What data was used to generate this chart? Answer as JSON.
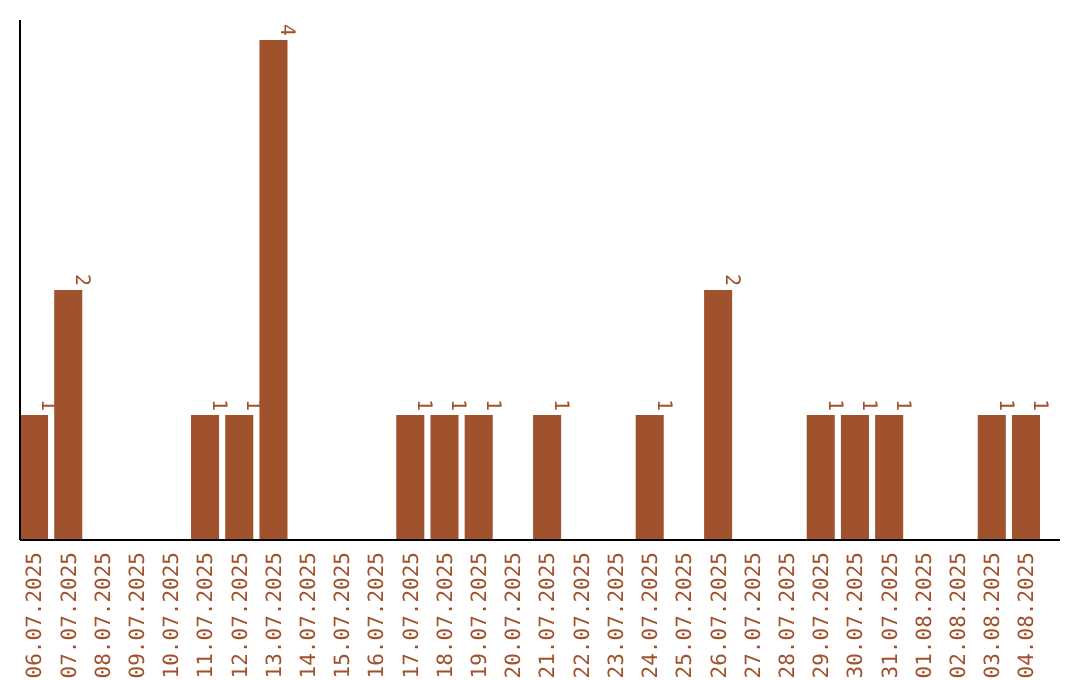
{
  "chart_data": {
    "type": "bar",
    "categories": [
      "06.07.2025",
      "07.07.2025",
      "08.07.2025",
      "09.07.2025",
      "10.07.2025",
      "11.07.2025",
      "12.07.2025",
      "13.07.2025",
      "14.07.2025",
      "15.07.2025",
      "16.07.2025",
      "17.07.2025",
      "18.07.2025",
      "19.07.2025",
      "20.07.2025",
      "21.07.2025",
      "22.07.2025",
      "23.07.2025",
      "24.07.2025",
      "25.07.2025",
      "26.07.2025",
      "27.07.2025",
      "28.07.2025",
      "29.07.2025",
      "30.07.2025",
      "31.07.2025",
      "01.08.2025",
      "02.08.2025",
      "03.08.2025",
      "04.08.2025"
    ],
    "values": [
      1,
      2,
      0,
      0,
      0,
      1,
      1,
      4,
      0,
      0,
      0,
      1,
      1,
      1,
      0,
      1,
      0,
      0,
      1,
      0,
      2,
      0,
      0,
      1,
      1,
      1,
      0,
      0,
      1,
      1
    ],
    "value_labels": [
      "1",
      "2",
      null,
      null,
      null,
      "1",
      "1",
      "4",
      null,
      null,
      null,
      "1",
      "1",
      "1",
      null,
      "1",
      null,
      null,
      "1",
      null,
      "2",
      null,
      null,
      "1",
      "1",
      "1",
      null,
      null,
      "1",
      "1"
    ],
    "color": "#a0522d",
    "grid": false
  }
}
